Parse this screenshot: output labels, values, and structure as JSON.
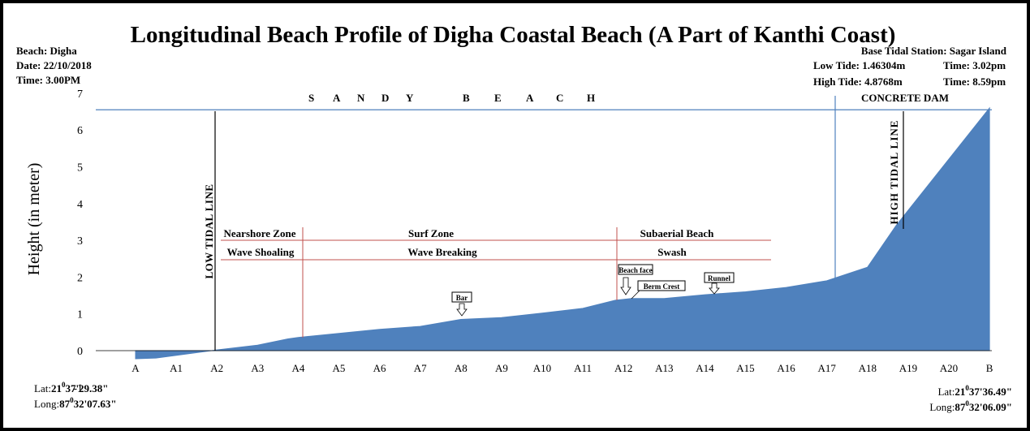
{
  "chart_data": {
    "type": "area",
    "title": "Longitudinal Beach Profile of Digha Coastal Beach (A Part of Kanthi Coast)",
    "ylabel": "Height (in meter)",
    "xlabel": "",
    "ylim": [
      -1,
      7
    ],
    "yticks": [
      "-1",
      "0",
      "1",
      "2",
      "3",
      "4",
      "5",
      "6",
      "7"
    ],
    "categories": [
      "A",
      "A1",
      "A2",
      "A3",
      "A4",
      "A5",
      "A6",
      "A7",
      "A8",
      "A9",
      "A10",
      "A11",
      "A12",
      "A13",
      "A14",
      "A15",
      "A16",
      "A17",
      "A18",
      "A19",
      "A20",
      "B"
    ],
    "x": [
      0,
      0.5,
      2,
      3,
      3.75,
      4,
      5,
      6,
      7,
      8,
      9,
      10,
      11,
      11.8,
      12.2,
      13,
      14,
      15,
      16,
      17,
      18,
      18.7,
      21
    ],
    "values": [
      -0.22,
      -0.2,
      0.02,
      0.15,
      0.32,
      0.36,
      0.47,
      0.58,
      0.66,
      0.85,
      0.9,
      1.02,
      1.15,
      1.37,
      1.42,
      1.42,
      1.52,
      1.6,
      1.72,
      1.9,
      2.27,
      3.4,
      6.6
    ],
    "area_color": "#4f81bd",
    "grid": false,
    "reference_line": {
      "y": 6.55,
      "color": "#4f81bd"
    },
    "info_left": {
      "beach": "Beach: Digha",
      "date": "Date: 22/10/2018",
      "time": "Time: 3.00PM"
    },
    "info_right": {
      "station": "Base Tidal Station: Sagar Island",
      "low_tide": "Low Tide: 1.46304m",
      "low_time": "Time: 3.02pm",
      "high_tide": "High Tide: 4.8768m",
      "high_time": "Time: 8.59pm"
    },
    "coord_left": {
      "lat_prefix": "Lat:",
      "lat": "21",
      "lat_rest": "37'29.38\"",
      "long_prefix": "Long:",
      "long": "87",
      "long_rest": "32'07.63\""
    },
    "coord_right": {
      "lat_prefix": "Lat:",
      "lat": "21",
      "lat_rest": "37'36.49\"",
      "long_prefix": "Long:",
      "long": "87",
      "long_rest": "32'06.09\""
    },
    "degree_mark": "0",
    "sandy_beach_letters": [
      "S",
      "A",
      "N",
      "D",
      "Y",
      "B",
      "E",
      "A",
      "C",
      "H"
    ],
    "concrete_dam": "CONCRETE DAM",
    "low_tidal_line": "LOW TIDAL LINE",
    "high_tidal_line": "HIGH TIDAL LINE",
    "zones": {
      "nearshore": "Nearshore Zone",
      "surf": "Surf Zone",
      "subaerial": "Subaerial Beach",
      "wave_shoaling": "Wave Shoaling",
      "wave_breaking": "Wave Breaking",
      "swash": "Swash"
    },
    "features": {
      "bar": "Bar",
      "beach_face": "Beach face",
      "berm_crest": "Berm Crest",
      "runnel": "Runnel"
    }
  }
}
